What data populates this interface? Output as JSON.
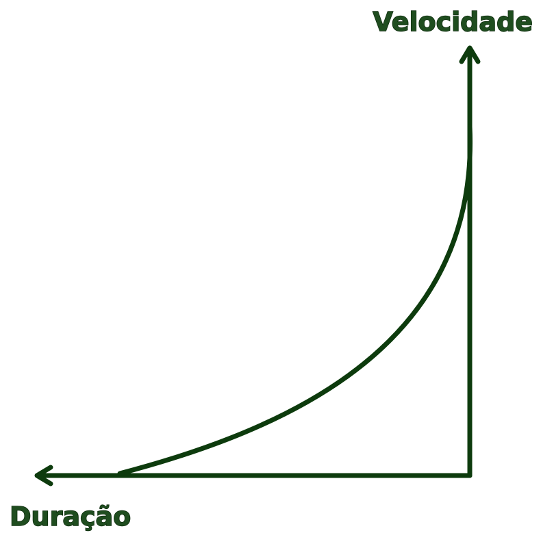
{
  "axes": {
    "y_label": "Velocidade",
    "x_label": "Duração"
  }
}
